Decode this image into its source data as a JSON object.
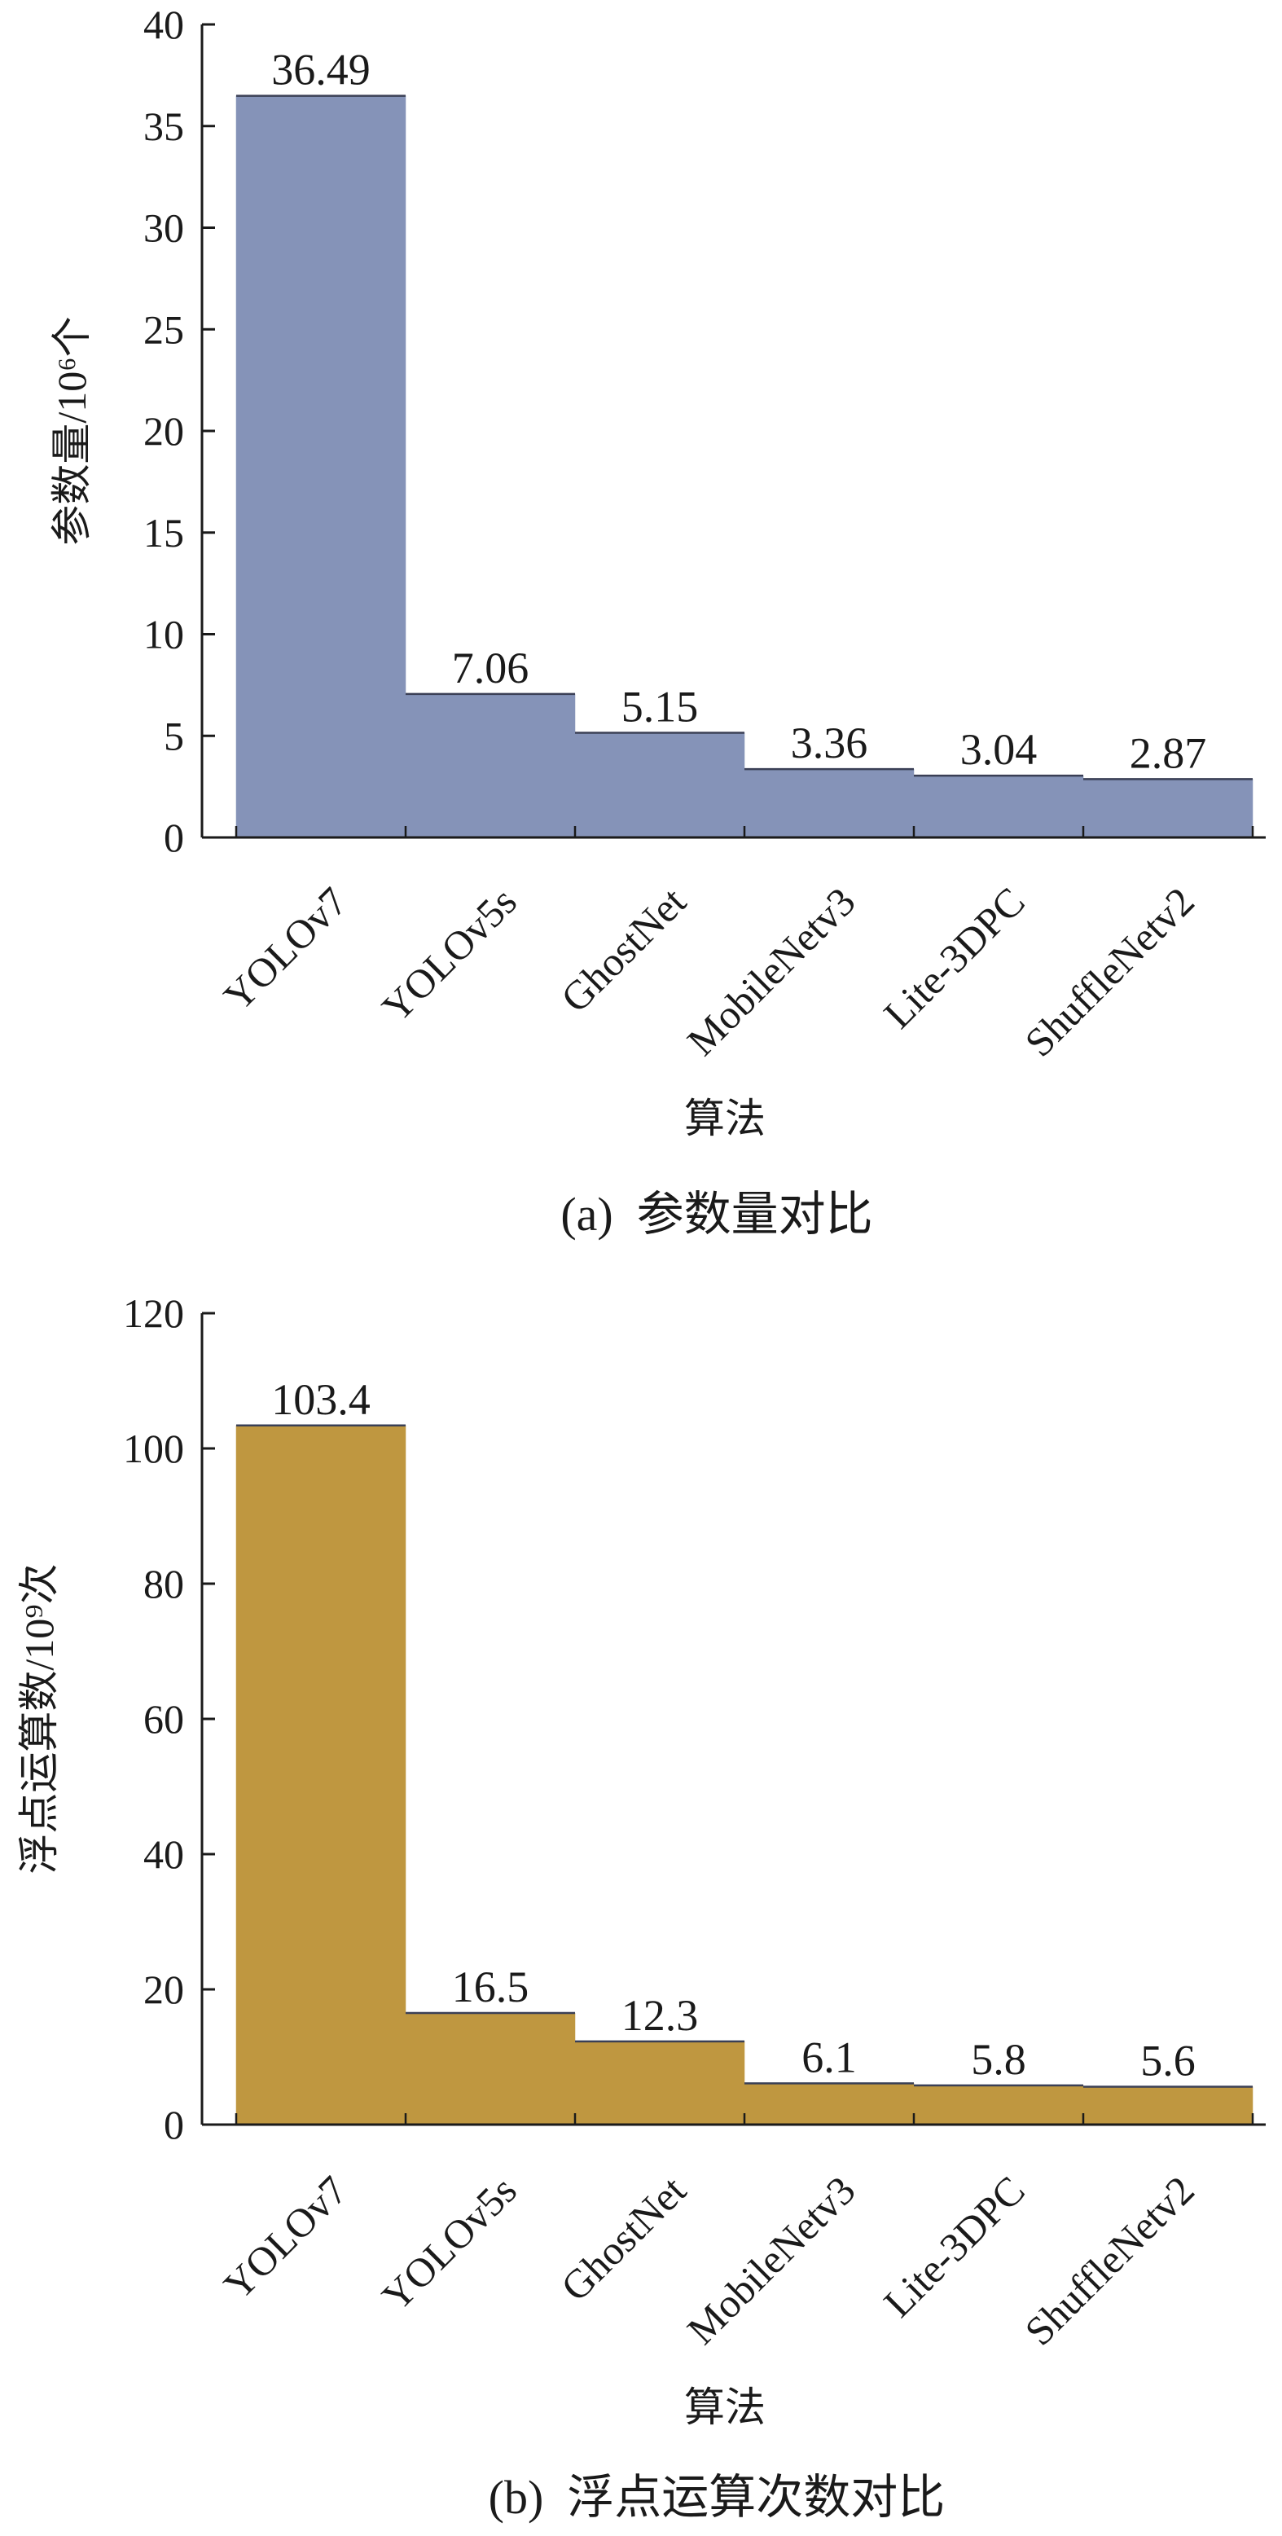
{
  "chart_data": [
    {
      "type": "bar",
      "caption": "(a)  参数量对比",
      "categories": [
        "YOLOv7",
        "YOLOv5s",
        "GhostNet",
        "MobileNetv3",
        "Lite-3DPC",
        "ShuffleNetv2"
      ],
      "values": [
        36.49,
        7.06,
        5.15,
        3.36,
        3.04,
        2.87
      ],
      "value_labels": [
        "36.49",
        "7.06",
        "5.15",
        "3.36",
        "3.04",
        "2.87"
      ],
      "xlabel": "算法",
      "ylabel": "参数量/10⁶个",
      "ylim": [
        0,
        40
      ],
      "yticks": [
        0,
        5,
        10,
        15,
        20,
        25,
        30,
        35,
        40
      ],
      "bar_color": "#8593b8",
      "grid": false,
      "legend": "none"
    },
    {
      "type": "bar",
      "caption": "(b)  浮点运算次数对比",
      "categories": [
        "YOLOv7",
        "YOLOv5s",
        "GhostNet",
        "MobileNetv3",
        "Lite-3DPC",
        "ShuffleNetv2"
      ],
      "values": [
        103.4,
        16.5,
        12.3,
        6.1,
        5.8,
        5.6
      ],
      "value_labels": [
        "103.4",
        "16.5",
        "12.3",
        "6.1",
        "5.8",
        "5.6"
      ],
      "xlabel": "算法",
      "ylabel": "浮点运算数/10⁹次",
      "ylim": [
        0,
        120
      ],
      "yticks": [
        0,
        20,
        40,
        60,
        80,
        100,
        120
      ],
      "bar_color": "#bf9740",
      "grid": false,
      "legend": "none"
    }
  ]
}
